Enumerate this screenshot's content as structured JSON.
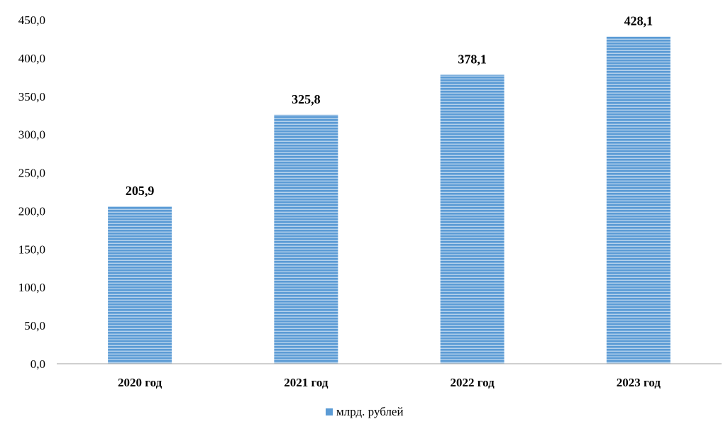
{
  "chart_data": {
    "type": "bar",
    "categories": [
      "2020 год",
      "2021 год",
      "2022 год",
      "2023 год"
    ],
    "series": [
      {
        "name": "млрд. рублей",
        "values": [
          205.9,
          325.8,
          378.1,
          428.1
        ]
      }
    ],
    "value_labels": [
      "205,9",
      "325,8",
      "378,1",
      "428,1"
    ],
    "y_ticks": [
      "0,0",
      "50,0",
      "100,0",
      "150,0",
      "200,0",
      "250,0",
      "300,0",
      "350,0",
      "400,0",
      "450,0"
    ],
    "ylim": [
      0,
      450
    ],
    "y_step": 50,
    "grid": false,
    "legend_position": "bottom-center",
    "colors": {
      "bar": "#5b9bd5",
      "bar_stripe": "#ffffff",
      "axis": "#bfbfbf"
    }
  }
}
